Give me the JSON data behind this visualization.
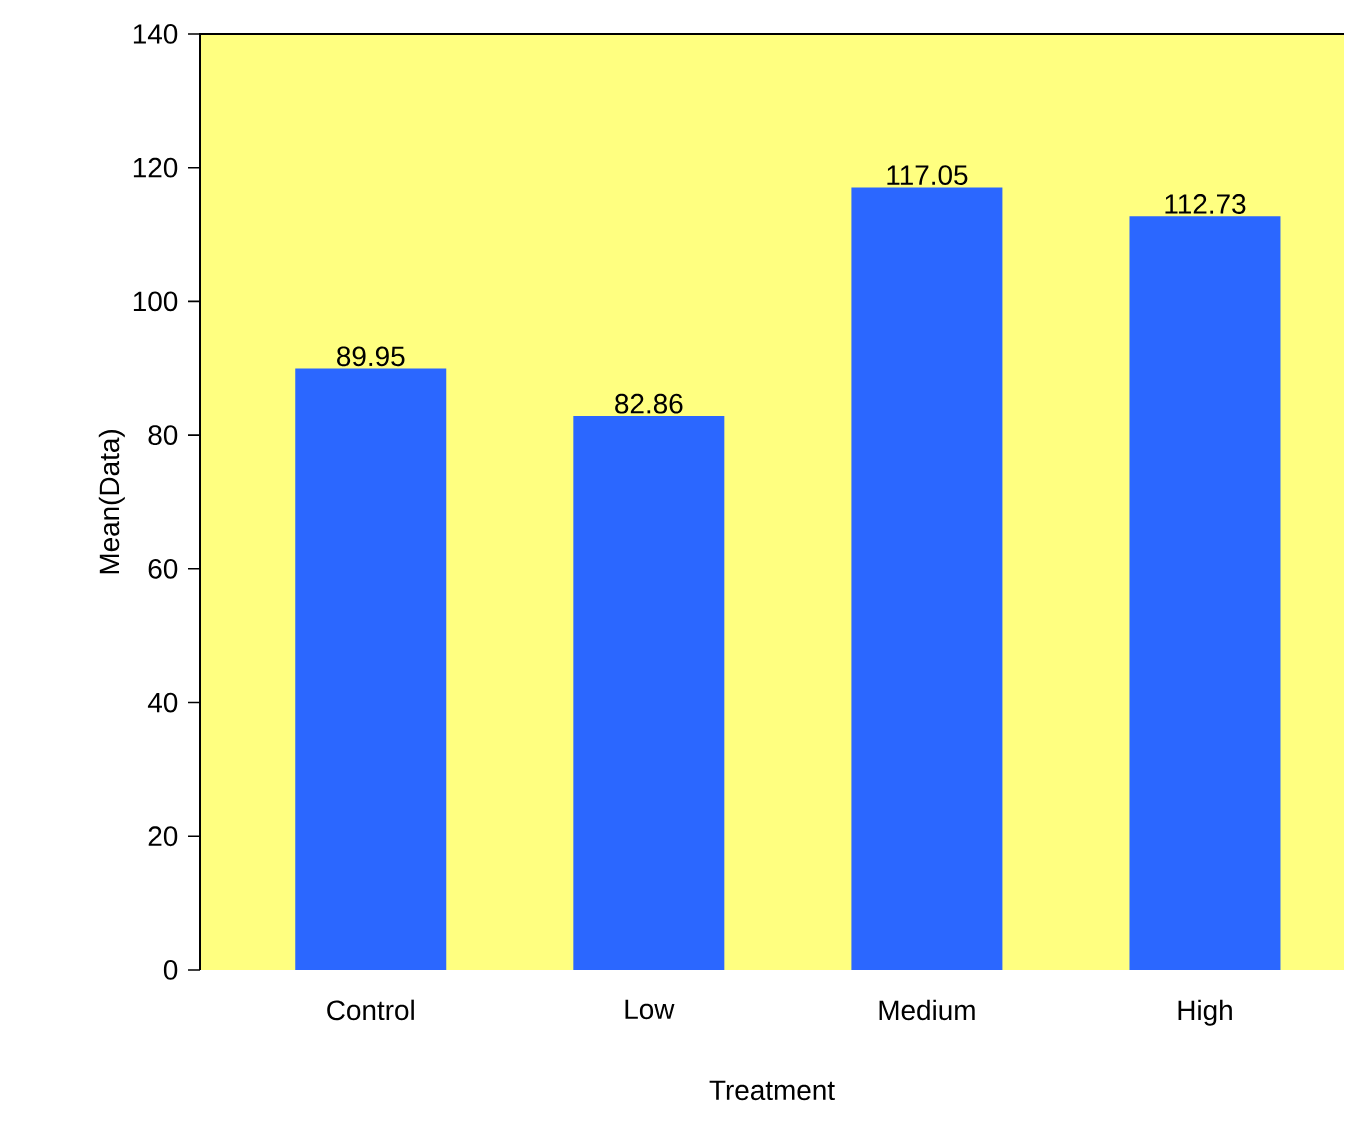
{
  "chart_data": {
    "type": "bar",
    "xlabel": "Treatment",
    "ylabel": "Mean(Data)",
    "categories": [
      "Control",
      "Low",
      "Medium",
      "High"
    ],
    "values": [
      89.95,
      82.86,
      117.05,
      112.73
    ],
    "color": "#2b67ff",
    "ylim": [
      0,
      140
    ],
    "yticks": [
      0,
      20,
      40,
      60,
      80,
      100,
      120,
      140
    ],
    "data_labels": true,
    "grid": false
  }
}
